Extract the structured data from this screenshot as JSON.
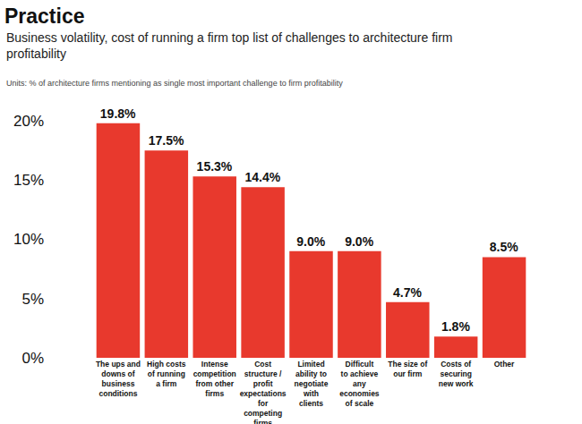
{
  "chart_data": {
    "type": "bar",
    "title": "Practice",
    "subtitle": "Business volatility, cost of running a firm top list of challenges to architecture firm profitability",
    "annotations": [
      "Units: % of architecture firms mentioning as single most important challenge to firm profitability"
    ],
    "categories": [
      "The ups and downs of business conditions",
      "High costs of running a firm",
      "Intense competition from other firms",
      "Cost structure / profit expectations for competing firms",
      "Limited ability to negotiate with clients",
      "Difficult to achieve any economies of scale",
      "The size of our firm",
      "Costs of securing new work",
      "Other"
    ],
    "values": [
      19.8,
      17.5,
      15.3,
      14.4,
      9.0,
      9.0,
      4.7,
      1.8,
      8.5
    ],
    "value_labels": [
      "19.8%",
      "17.5%",
      "15.3%",
      "14.4%",
      "9.0%",
      "9.0%",
      "4.7%",
      "1.8%",
      "8.5%"
    ],
    "data_labels": true,
    "color": "#e8392d",
    "ylim": [
      0,
      20
    ],
    "yticks": [
      {
        "value": 0,
        "label": "0%"
      },
      {
        "value": 5,
        "label": "5%"
      },
      {
        "value": 10,
        "label": "10%"
      },
      {
        "value": 15,
        "label": "15%"
      },
      {
        "value": 20,
        "label": "20%"
      }
    ],
    "grid": false
  }
}
